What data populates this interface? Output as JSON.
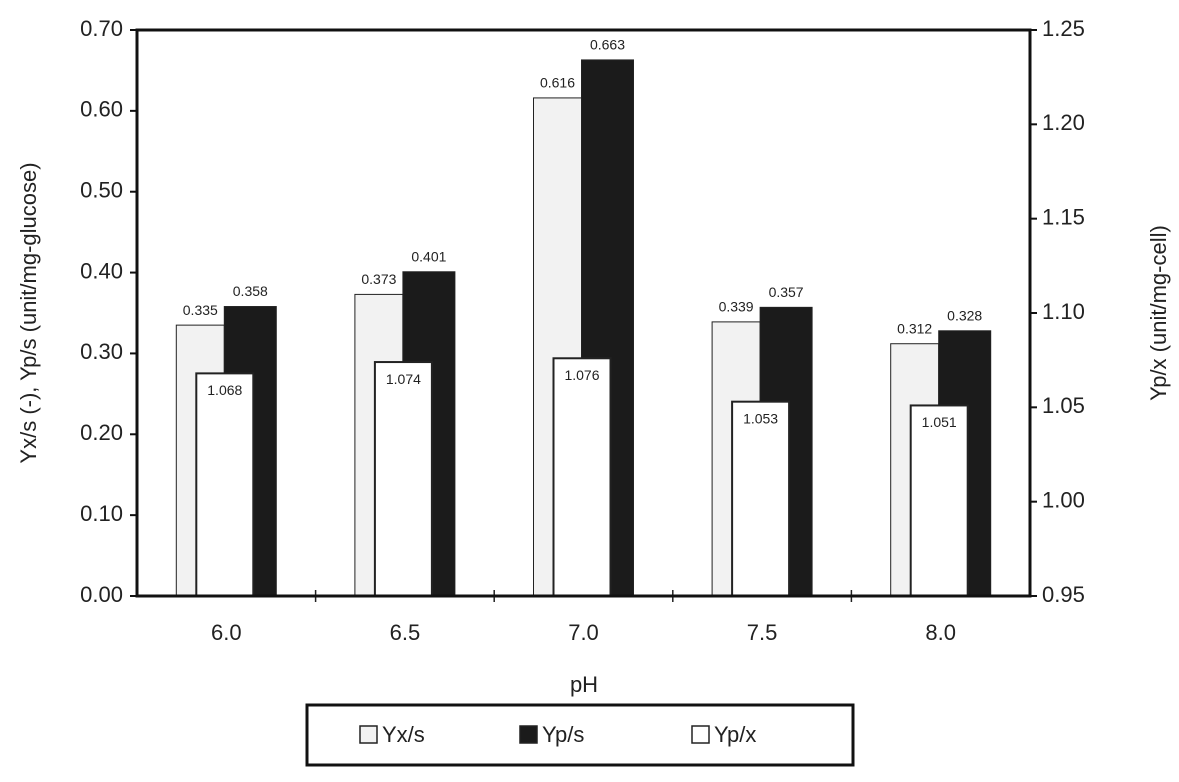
{
  "chart_data": {
    "type": "bar",
    "x_label": "pH",
    "y_label": "Yx/s (-), Yp/s (unit/mg-glucose)",
    "y2_label": "Yp/x (unit/mg-cell)",
    "categories": [
      "6.0",
      "6.5",
      "7.0",
      "7.5",
      "8.0"
    ],
    "series": [
      {
        "name": "Yx/s",
        "color": "#f2f2f2",
        "values": [
          0.335,
          0.373,
          0.616,
          0.339,
          0.312
        ]
      },
      {
        "name": "Yp/s",
        "color": "#1b1b1b",
        "values": [
          0.358,
          0.401,
          0.663,
          0.357,
          0.328
        ]
      },
      {
        "name": "Yp/x",
        "color": "#ffffff",
        "axis": "y2",
        "values": [
          1.068,
          1.074,
          1.076,
          1.053,
          1.051
        ]
      }
    ],
    "ylim": [
      0,
      0.7
    ],
    "yticks": [
      {
        "value": 0,
        "label": "0.00"
      },
      {
        "value": 0.1,
        "label": "0.10"
      },
      {
        "value": 0.2,
        "label": "0.20"
      },
      {
        "value": 0.3,
        "label": "0.30"
      },
      {
        "value": 0.4,
        "label": "0.40"
      },
      {
        "value": 0.5,
        "label": "0.50"
      },
      {
        "value": 0.6,
        "label": "0.60"
      },
      {
        "value": 0.7,
        "label": "0.70"
      }
    ],
    "y2lim": [
      0.95,
      1.25
    ],
    "y2ticks": [
      0.95,
      {
        "value": 1,
        "label": "1.00"
      },
      1.05,
      {
        "value": 1.1,
        "label": "1.10"
      },
      1.15,
      {
        "value": 1.2,
        "label": "1.20"
      },
      1.25
    ],
    "grid": false,
    "legend": "bottom"
  }
}
